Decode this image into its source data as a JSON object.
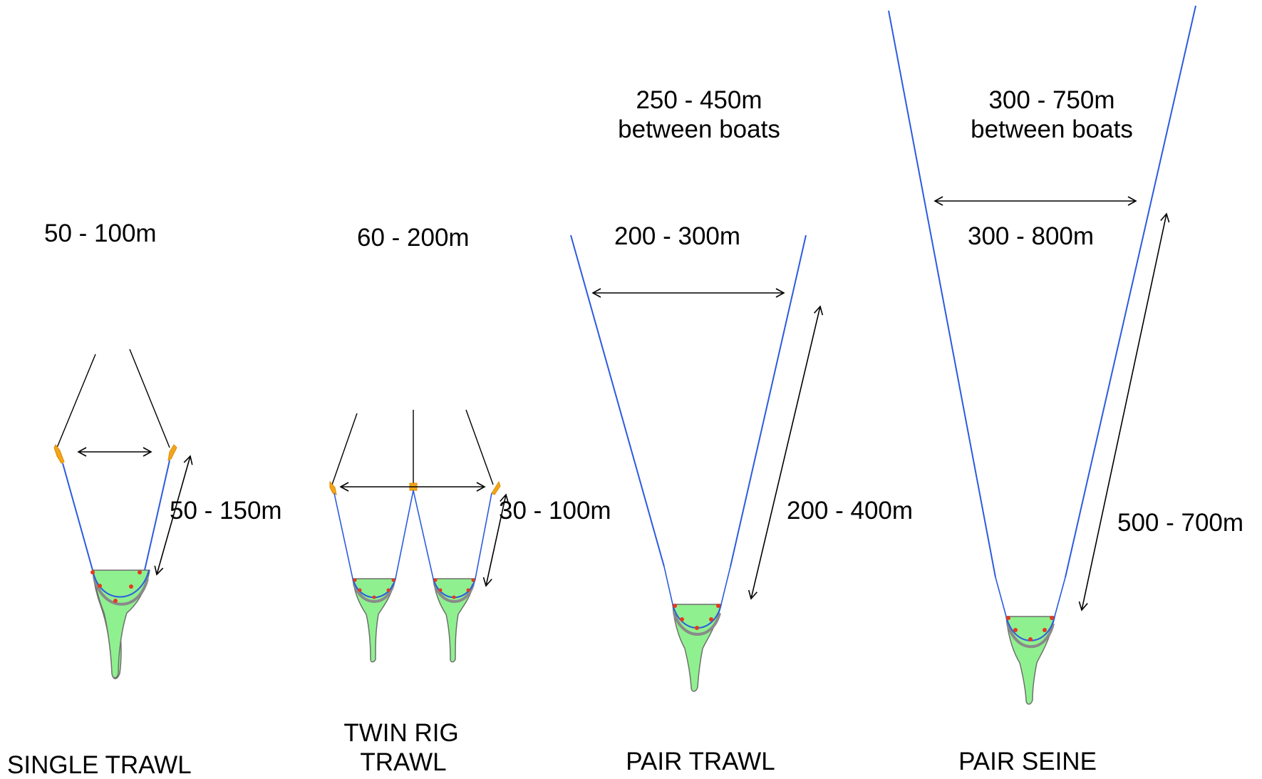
{
  "panels": {
    "single": {
      "title": "SINGLE TRAWL",
      "door_spread": "50 - 100m",
      "bridle_length": "50 - 150m"
    },
    "twin": {
      "title_line1": "TWIN RIG",
      "title_line2": "TRAWL",
      "door_spread": "60 - 200m",
      "bridle_length": "30 - 100m"
    },
    "pair_trawl": {
      "title": "PAIR TRAWL",
      "boat_distance_line1": "250 - 450m",
      "boat_distance_line2": "between boats",
      "wing_spread": "200 - 300m",
      "warp_length": "200 - 400m"
    },
    "pair_seine": {
      "title": "PAIR SEINE",
      "boat_distance_line1": "300 - 750m",
      "boat_distance_line2": "between boats",
      "wing_spread": "300 - 800m",
      "warp_length": "500 - 700m"
    }
  },
  "colors": {
    "warp": "#2b5be0",
    "net": "#8ff08f",
    "float": "#e53a1e",
    "door": "#f2a61a"
  }
}
